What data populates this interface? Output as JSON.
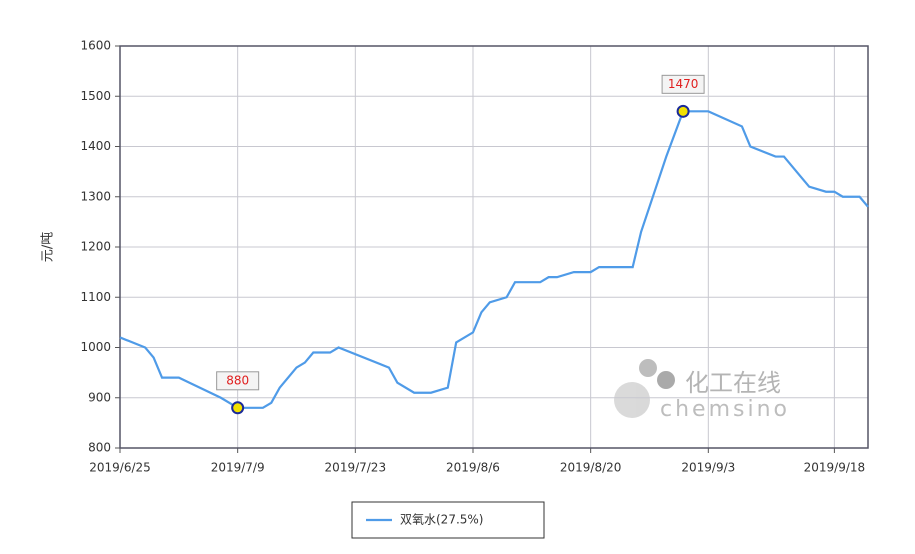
{
  "chart_data": {
    "type": "line",
    "y_label": "元/吨",
    "x": [
      "2019/6/25",
      "2019/6/28",
      "2019/6/29",
      "2019/6/30",
      "2019/7/2",
      "2019/7/7",
      "2019/7/9",
      "2019/7/12",
      "2019/7/13",
      "2019/7/14",
      "2019/7/16",
      "2019/7/17",
      "2019/7/18",
      "2019/7/20",
      "2019/7/21",
      "2019/7/27",
      "2019/7/28",
      "2019/7/30",
      "2019/8/1",
      "2019/8/3",
      "2019/8/4",
      "2019/8/6",
      "2019/8/7",
      "2019/8/8",
      "2019/8/10",
      "2019/8/11",
      "2019/8/14",
      "2019/8/15",
      "2019/8/16",
      "2019/8/18",
      "2019/8/20",
      "2019/8/21",
      "2019/8/25",
      "2019/8/26",
      "2019/8/28",
      "2019/8/29",
      "2019/8/31",
      "2019/9/3",
      "2019/9/7",
      "2019/9/8",
      "2019/9/11",
      "2019/9/12",
      "2019/9/14",
      "2019/9/15",
      "2019/9/17",
      "2019/9/18",
      "2019/9/19",
      "2019/9/21",
      "2019/9/22"
    ],
    "series": [
      {
        "name": "双氧水(27.5%)",
        "color": "#4f9be8",
        "values": [
          1020,
          1000,
          980,
          940,
          940,
          900,
          880,
          880,
          890,
          920,
          960,
          970,
          990,
          990,
          1000,
          960,
          930,
          910,
          910,
          920,
          1010,
          1030,
          1070,
          1090,
          1100,
          1130,
          1130,
          1140,
          1140,
          1150,
          1150,
          1160,
          1160,
          1230,
          1330,
          1380,
          1470,
          1470,
          1440,
          1400,
          1380,
          1380,
          1340,
          1320,
          1310,
          1310,
          1300,
          1300,
          1280
        ]
      }
    ],
    "annotations": [
      {
        "x": "2019/7/9",
        "value": 880
      },
      {
        "x": "2019/8/31",
        "value": 1470
      }
    ],
    "xlim": [
      "2019/6/25",
      "2019/9/22"
    ],
    "xticks": [
      "2019/6/25",
      "2019/7/9",
      "2019/7/23",
      "2019/8/6",
      "2019/8/20",
      "2019/9/3",
      "2019/9/18"
    ],
    "ylim": [
      800,
      1600
    ],
    "yticks": [
      800,
      900,
      1000,
      1100,
      1200,
      1300,
      1400,
      1500,
      1600
    ],
    "grid": true,
    "legend": "bottom",
    "watermark": {
      "cn": "化工在线",
      "en": "chemsino"
    }
  }
}
